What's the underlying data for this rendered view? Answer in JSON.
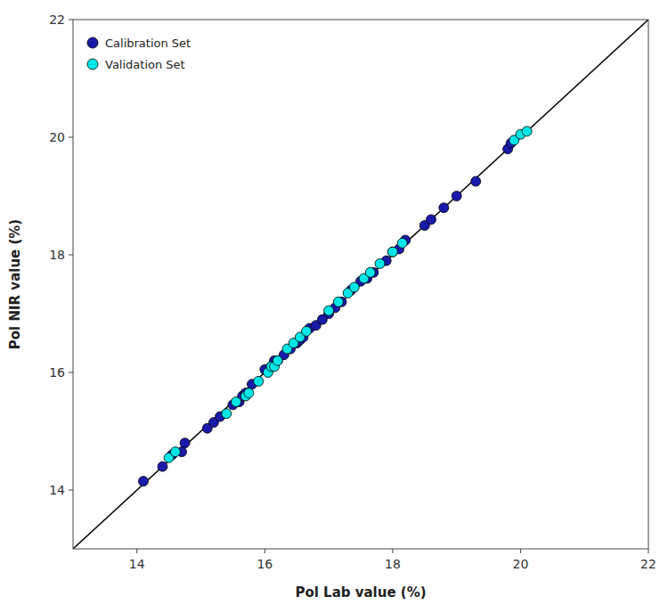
{
  "chart_data": {
    "type": "scatter",
    "xlabel": "Pol Lab value (%)",
    "ylabel": "Pol NIR value (%)",
    "xlim": [
      13.0,
      22.0
    ],
    "ylim": [
      13.0,
      22.0
    ],
    "xticks": [
      14,
      16,
      18,
      20,
      22
    ],
    "yticks": [
      14,
      16,
      18,
      20,
      22
    ],
    "grid": false,
    "legend": "upper left",
    "series": [
      {
        "type": "line",
        "color": "#000000",
        "x": [
          13.0,
          22.0
        ],
        "values": [
          13.0,
          22.0
        ]
      },
      {
        "name": "Calibration Set",
        "type": "scatter",
        "color": "#1a1aaa",
        "x": [
          14.1,
          14.4,
          14.55,
          14.7,
          14.75,
          15.1,
          15.2,
          15.3,
          15.5,
          15.6,
          15.65,
          15.7,
          15.8,
          16.0,
          16.1,
          16.15,
          16.2,
          16.3,
          16.4,
          16.5,
          16.55,
          16.6,
          16.7,
          16.8,
          16.9,
          17.0,
          17.1,
          17.2,
          17.35,
          17.5,
          17.6,
          17.7,
          17.9,
          18.0,
          18.1,
          18.2,
          18.5,
          18.6,
          18.8,
          19.0,
          19.3,
          19.8,
          19.85
        ],
        "values": [
          14.15,
          14.4,
          14.6,
          14.65,
          14.8,
          15.05,
          15.15,
          15.25,
          15.45,
          15.5,
          15.6,
          15.65,
          15.8,
          16.05,
          16.1,
          16.2,
          16.2,
          16.3,
          16.4,
          16.5,
          16.55,
          16.6,
          16.75,
          16.8,
          16.9,
          17.0,
          17.1,
          17.2,
          17.4,
          17.55,
          17.6,
          17.7,
          17.9,
          18.05,
          18.1,
          18.25,
          18.5,
          18.6,
          18.8,
          19.0,
          19.25,
          19.8,
          19.9
        ]
      },
      {
        "name": "Validation Set",
        "type": "scatter",
        "color": "#00e5e5",
        "x": [
          14.5,
          14.6,
          15.4,
          15.55,
          15.7,
          15.75,
          15.9,
          16.05,
          16.1,
          16.15,
          16.2,
          16.35,
          16.45,
          16.55,
          16.65,
          17.0,
          17.15,
          17.3,
          17.4,
          17.55,
          17.65,
          17.8,
          18.0,
          18.15,
          19.9,
          20.0,
          20.1
        ],
        "values": [
          14.55,
          14.65,
          15.3,
          15.5,
          15.6,
          15.65,
          15.85,
          16.0,
          16.1,
          16.1,
          16.2,
          16.4,
          16.5,
          16.6,
          16.7,
          17.05,
          17.2,
          17.35,
          17.45,
          17.6,
          17.7,
          17.85,
          18.05,
          18.2,
          19.95,
          20.05,
          20.1
        ]
      }
    ]
  }
}
